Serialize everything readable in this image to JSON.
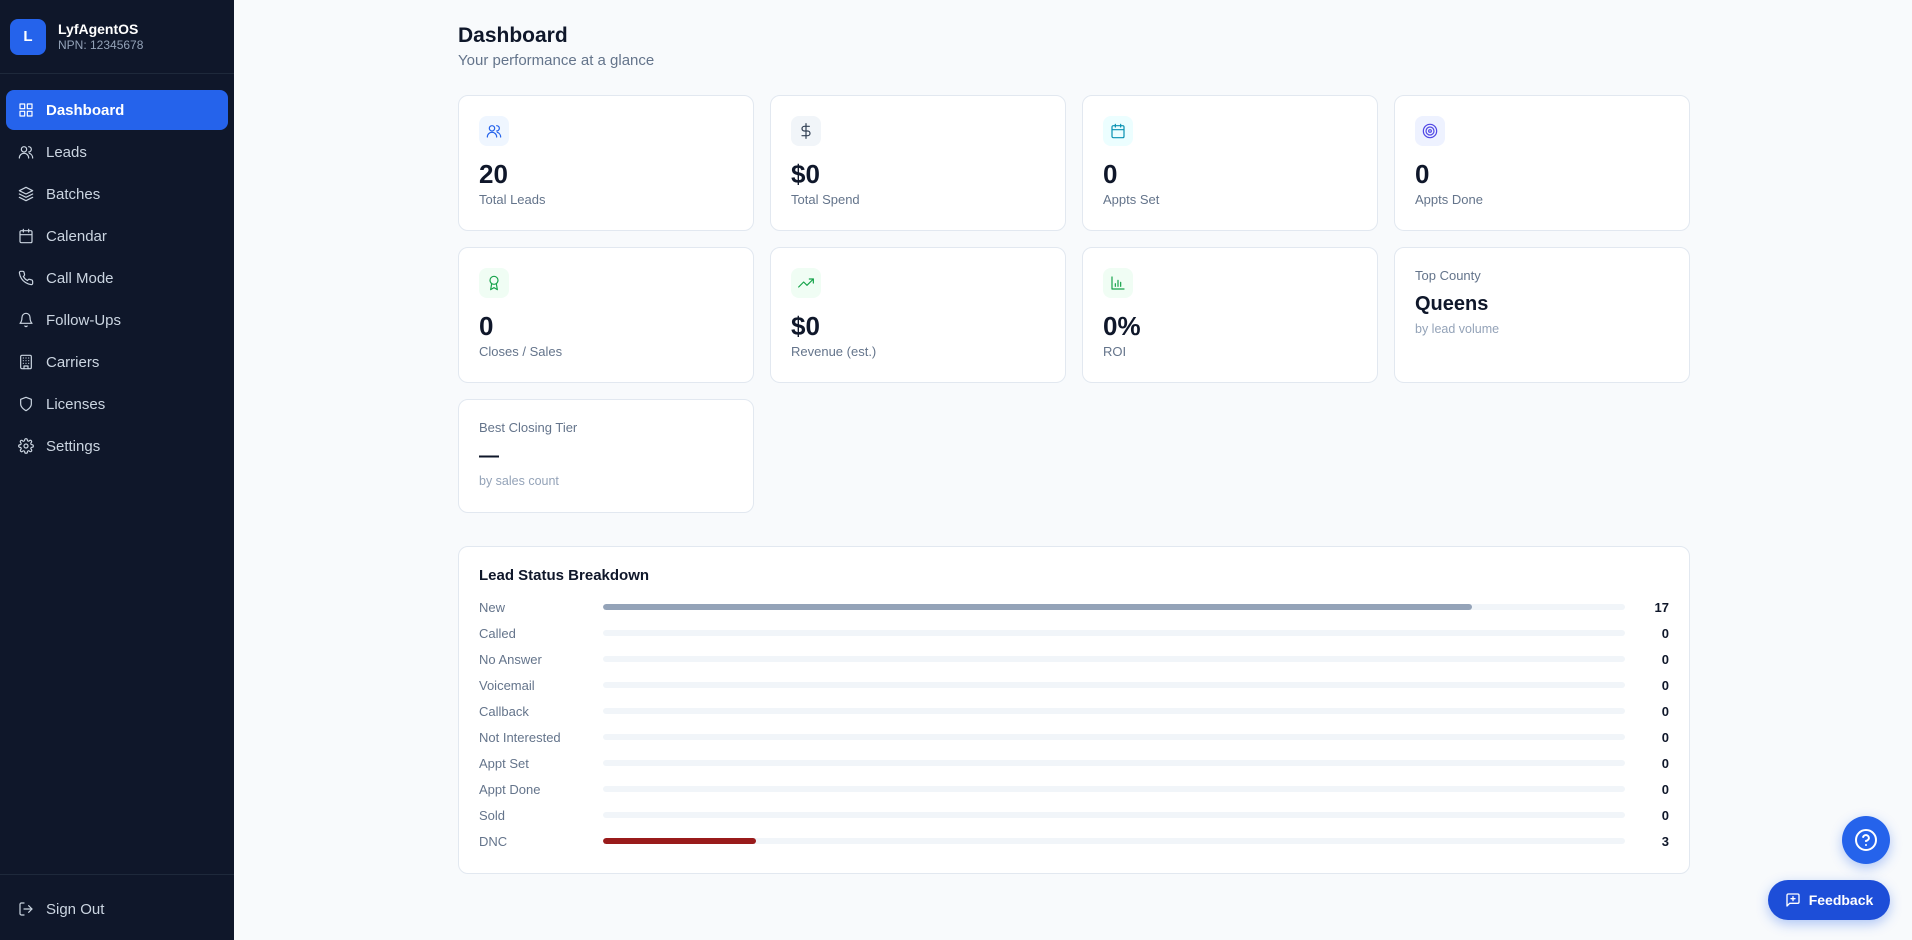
{
  "brand": {
    "logo_letter": "L",
    "name": "LyfAgentOS",
    "npn": "NPN: 12345678"
  },
  "sidebar": {
    "items": [
      {
        "label": "Dashboard",
        "icon": "grid-icon",
        "active": true
      },
      {
        "label": "Leads",
        "icon": "users-icon"
      },
      {
        "label": "Batches",
        "icon": "layers-icon"
      },
      {
        "label": "Calendar",
        "icon": "calendar-icon"
      },
      {
        "label": "Call Mode",
        "icon": "phone-icon"
      },
      {
        "label": "Follow-Ups",
        "icon": "bell-icon"
      },
      {
        "label": "Carriers",
        "icon": "building-icon"
      },
      {
        "label": "Licenses",
        "icon": "shield-icon"
      },
      {
        "label": "Settings",
        "icon": "gear-icon"
      }
    ],
    "sign_out": "Sign Out"
  },
  "header": {
    "title": "Dashboard",
    "subtitle": "Your performance at a glance"
  },
  "stats": {
    "total_leads": {
      "value": "20",
      "label": "Total Leads",
      "icon": "users-icon"
    },
    "total_spend": {
      "value": "$0",
      "label": "Total Spend",
      "icon": "dollar-icon"
    },
    "appts_set": {
      "value": "0",
      "label": "Appts Set",
      "icon": "calendar-icon"
    },
    "appts_done": {
      "value": "0",
      "label": "Appts Done",
      "icon": "target-icon"
    },
    "closes": {
      "value": "0",
      "label": "Closes / Sales",
      "icon": "award-icon"
    },
    "revenue": {
      "value": "$0",
      "label": "Revenue (est.)",
      "icon": "trending-up-icon"
    },
    "roi": {
      "value": "0%",
      "label": "ROI",
      "icon": "bar-chart-icon"
    },
    "top_county": {
      "label": "Top County",
      "value": "Queens",
      "hint": "by lead volume"
    },
    "best_tier": {
      "label": "Best Closing Tier",
      "value": "—",
      "hint": "by sales count"
    }
  },
  "breakdown": {
    "title": "Lead Status Breakdown",
    "total": 20,
    "rows": [
      {
        "label": "New",
        "count": 17,
        "color": "#94a3b8"
      },
      {
        "label": "Called",
        "count": 0,
        "color": "#94a3b8"
      },
      {
        "label": "No Answer",
        "count": 0,
        "color": "#94a3b8"
      },
      {
        "label": "Voicemail",
        "count": 0,
        "color": "#94a3b8"
      },
      {
        "label": "Callback",
        "count": 0,
        "color": "#94a3b8"
      },
      {
        "label": "Not Interested",
        "count": 0,
        "color": "#94a3b8"
      },
      {
        "label": "Appt Set",
        "count": 0,
        "color": "#94a3b8"
      },
      {
        "label": "Appt Done",
        "count": 0,
        "color": "#94a3b8"
      },
      {
        "label": "Sold",
        "count": 0,
        "color": "#94a3b8"
      },
      {
        "label": "DNC",
        "count": 3,
        "color": "#991b1b"
      }
    ]
  },
  "floating": {
    "feedback_label": "Feedback"
  },
  "colors": {
    "accent": "#2563eb",
    "sidebar_bg": "#0f172a"
  }
}
